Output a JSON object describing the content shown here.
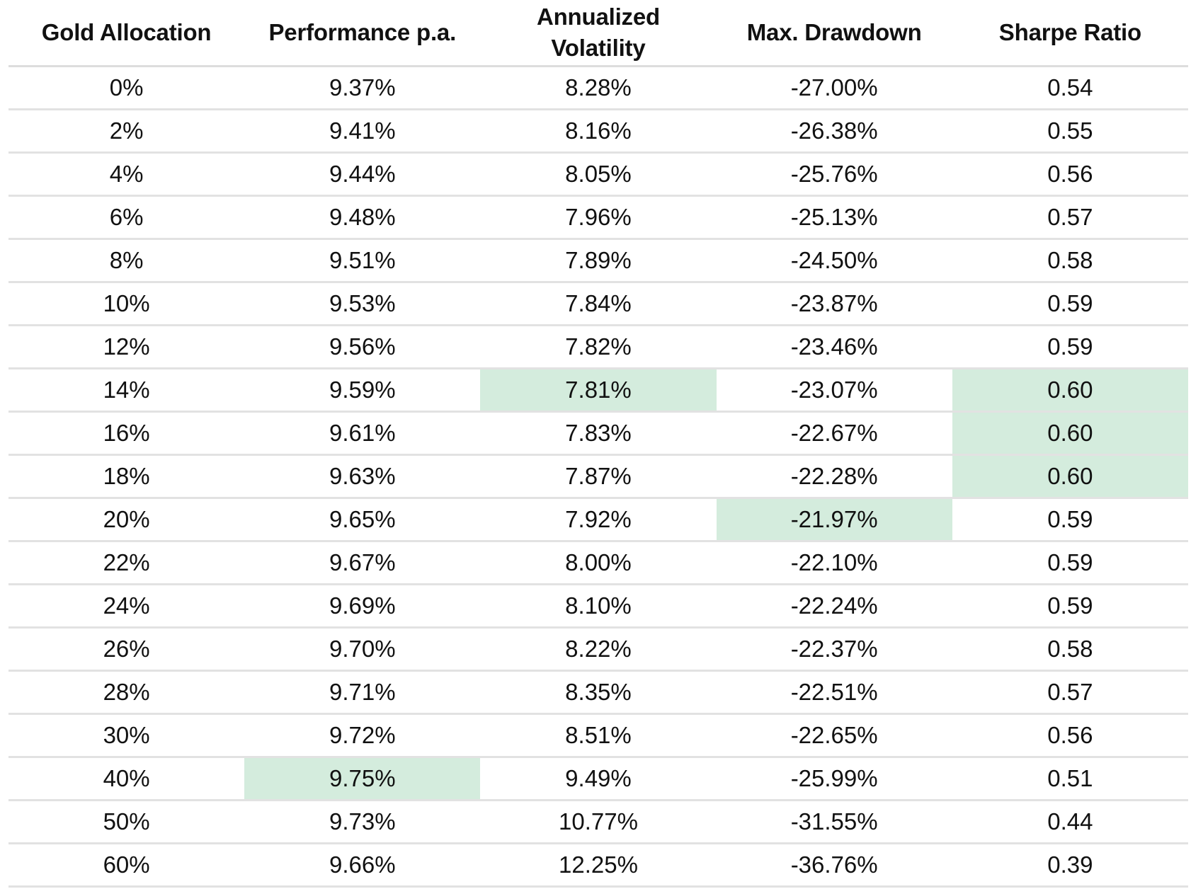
{
  "chart_data": {
    "type": "table",
    "columns": [
      "Gold Allocation",
      "Performance p.a.",
      "Annualized Volatility",
      "Max. Drawdown",
      "Sharpe Ratio"
    ],
    "rows": [
      [
        "0%",
        "9.37%",
        "8.28%",
        "-27.00%",
        "0.54"
      ],
      [
        "2%",
        "9.41%",
        "8.16%",
        "-26.38%",
        "0.55"
      ],
      [
        "4%",
        "9.44%",
        "8.05%",
        "-25.76%",
        "0.56"
      ],
      [
        "6%",
        "9.48%",
        "7.96%",
        "-25.13%",
        "0.57"
      ],
      [
        "8%",
        "9.51%",
        "7.89%",
        "-24.50%",
        "0.58"
      ],
      [
        "10%",
        "9.53%",
        "7.84%",
        "-23.87%",
        "0.59"
      ],
      [
        "12%",
        "9.56%",
        "7.82%",
        "-23.46%",
        "0.59"
      ],
      [
        "14%",
        "9.59%",
        "7.81%",
        "-23.07%",
        "0.60"
      ],
      [
        "16%",
        "9.61%",
        "7.83%",
        "-22.67%",
        "0.60"
      ],
      [
        "18%",
        "9.63%",
        "7.87%",
        "-22.28%",
        "0.60"
      ],
      [
        "20%",
        "9.65%",
        "7.92%",
        "-21.97%",
        "0.59"
      ],
      [
        "22%",
        "9.67%",
        "8.00%",
        "-22.10%",
        "0.59"
      ],
      [
        "24%",
        "9.69%",
        "8.10%",
        "-22.24%",
        "0.59"
      ],
      [
        "26%",
        "9.70%",
        "8.22%",
        "-22.37%",
        "0.58"
      ],
      [
        "28%",
        "9.71%",
        "8.35%",
        "-22.51%",
        "0.57"
      ],
      [
        "30%",
        "9.72%",
        "8.51%",
        "-22.65%",
        "0.56"
      ],
      [
        "40%",
        "9.75%",
        "9.49%",
        "-25.99%",
        "0.51"
      ],
      [
        "50%",
        "9.73%",
        "10.77%",
        "-31.55%",
        "0.44"
      ],
      [
        "60%",
        "9.66%",
        "12.25%",
        "-36.76%",
        "0.39"
      ]
    ],
    "highlighted_cells": [
      [
        7,
        2
      ],
      [
        7,
        4
      ],
      [
        8,
        4
      ],
      [
        9,
        4
      ],
      [
        10,
        3
      ],
      [
        16,
        1
      ]
    ],
    "highlight_color": "#d4ecdd"
  }
}
